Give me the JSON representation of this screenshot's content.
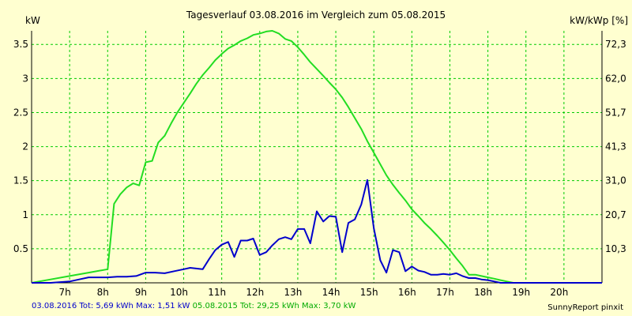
{
  "chart_data": {
    "type": "line",
    "title": "Tagesverlauf 03.08.2016 im Vergleich zum 05.08.2015",
    "ylabel_left": "kW",
    "ylabel_right": "kW/kWp [%]",
    "x_ticks": [
      "7h",
      "8h",
      "9h",
      "10h",
      "11h",
      "12h",
      "13h",
      "14h",
      "15h",
      "16h",
      "17h",
      "18h",
      "19h",
      "20h"
    ],
    "x_tick_values": [
      7,
      8,
      9,
      10,
      11,
      12,
      13,
      14,
      15,
      16,
      17,
      18,
      19,
      20
    ],
    "xlim": [
      6.0,
      21.0
    ],
    "y_ticks": [
      "0.5",
      "1",
      "1.5",
      "2",
      "2.5",
      "3",
      "3.5"
    ],
    "y_tick_values": [
      0.5,
      1.0,
      1.5,
      2.0,
      2.5,
      3.0,
      3.5
    ],
    "y2_ticks": [
      "10,3",
      "20,7",
      "31,0",
      "41,3",
      "51,7",
      "62,0",
      "72,3"
    ],
    "ylim": [
      0,
      3.7
    ],
    "grid": true,
    "colors": {
      "background": "#FFFFD0",
      "grid": "#00CC00",
      "axis": "#000000",
      "series_2016": "#0000CC",
      "series_2015": "#22DD22"
    },
    "series": [
      {
        "name": "03.08.2016",
        "color": "#0000CC",
        "x": [
          6.0,
          6.5,
          7.0,
          7.25,
          7.5,
          7.75,
          8.0,
          8.25,
          8.5,
          8.75,
          9.0,
          9.25,
          9.5,
          9.75,
          10.0,
          10.17,
          10.33,
          10.5,
          10.67,
          10.83,
          11.0,
          11.17,
          11.33,
          11.5,
          11.67,
          11.83,
          12.0,
          12.17,
          12.33,
          12.5,
          12.67,
          12.83,
          13.0,
          13.17,
          13.33,
          13.5,
          13.67,
          13.83,
          14.0,
          14.17,
          14.33,
          14.5,
          14.67,
          14.83,
          15.0,
          15.17,
          15.33,
          15.5,
          15.67,
          15.83,
          16.0,
          16.17,
          16.33,
          16.5,
          16.67,
          16.83,
          17.0,
          17.17,
          17.33,
          17.5,
          17.67,
          17.83,
          18.0,
          18.17,
          18.33,
          18.5,
          18.67,
          18.83,
          19.0,
          19.17,
          19.33,
          19.5,
          19.67,
          19.83,
          20.0,
          20.25,
          20.5,
          20.75,
          21.0
        ],
        "values": [
          0.0,
          0.0,
          0.02,
          0.05,
          0.08,
          0.08,
          0.08,
          0.09,
          0.09,
          0.1,
          0.15,
          0.15,
          0.14,
          0.17,
          0.2,
          0.22,
          0.21,
          0.2,
          0.35,
          0.48,
          0.56,
          0.6,
          0.38,
          0.62,
          0.62,
          0.65,
          0.41,
          0.45,
          0.55,
          0.64,
          0.67,
          0.64,
          0.79,
          0.79,
          0.58,
          1.05,
          0.9,
          0.98,
          0.97,
          0.45,
          0.88,
          0.93,
          1.15,
          1.51,
          0.8,
          0.33,
          0.15,
          0.48,
          0.45,
          0.17,
          0.24,
          0.18,
          0.16,
          0.12,
          0.12,
          0.13,
          0.12,
          0.14,
          0.1,
          0.07,
          0.07,
          0.05,
          0.04,
          0.02,
          0.0,
          0.0,
          0.0,
          0.0,
          0.0,
          0.0,
          0.0,
          0.0,
          0.0,
          0.0,
          0.0,
          0.0,
          0.0,
          0.0,
          0.0
        ]
      },
      {
        "name": "05.08.2015",
        "color": "#22DD22",
        "x": [
          6.0,
          6.5,
          7.0,
          7.5,
          8.0,
          8.17,
          8.33,
          8.5,
          8.67,
          8.83,
          9.0,
          9.17,
          9.33,
          9.5,
          9.67,
          9.83,
          10.0,
          10.17,
          10.33,
          10.5,
          10.67,
          10.83,
          11.0,
          11.17,
          11.33,
          11.5,
          11.67,
          11.83,
          12.0,
          12.17,
          12.33,
          12.5,
          12.67,
          12.83,
          13.0,
          13.17,
          13.33,
          13.5,
          13.67,
          13.83,
          14.0,
          14.17,
          14.33,
          14.5,
          14.67,
          14.83,
          15.0,
          15.17,
          15.33,
          15.5,
          15.67,
          15.83,
          16.0,
          16.17,
          16.33,
          16.5,
          16.67,
          16.83,
          17.0,
          17.17,
          17.33,
          17.5,
          17.67,
          17.83,
          18.0,
          18.17,
          18.33,
          18.5,
          18.67,
          18.83,
          19.0,
          19.17,
          19.33,
          19.5,
          19.67,
          19.83,
          20.0,
          20.25,
          20.5,
          20.75,
          21.0
        ],
        "values": [
          0.0,
          0.05,
          0.1,
          0.15,
          0.2,
          1.16,
          1.3,
          1.4,
          1.46,
          1.43,
          1.77,
          1.79,
          2.06,
          2.16,
          2.34,
          2.5,
          2.64,
          2.78,
          2.92,
          3.05,
          3.16,
          3.27,
          3.36,
          3.44,
          3.49,
          3.55,
          3.59,
          3.64,
          3.66,
          3.69,
          3.7,
          3.66,
          3.58,
          3.55,
          3.46,
          3.35,
          3.24,
          3.14,
          3.04,
          2.94,
          2.84,
          2.72,
          2.58,
          2.42,
          2.26,
          2.08,
          1.91,
          1.74,
          1.58,
          1.44,
          1.32,
          1.21,
          1.08,
          0.98,
          0.88,
          0.79,
          0.69,
          0.59,
          0.48,
          0.36,
          0.25,
          0.12,
          0.12,
          0.1,
          0.08,
          0.06,
          0.04,
          0.02,
          0.0,
          0.0,
          0.0,
          0.0,
          0.0,
          0.0,
          0.0,
          0.0,
          0.0,
          0.0,
          0.0,
          0.0,
          0.0
        ]
      }
    ]
  },
  "footer": {
    "series1_text": "03.08.2016 Tot: 5,69 kWh Max: 1,51 kW",
    "series2_text": "05.08.2015 Tot: 29,25 kWh Max: 3,70 kW"
  },
  "credit": "SunnyReport pinxit"
}
